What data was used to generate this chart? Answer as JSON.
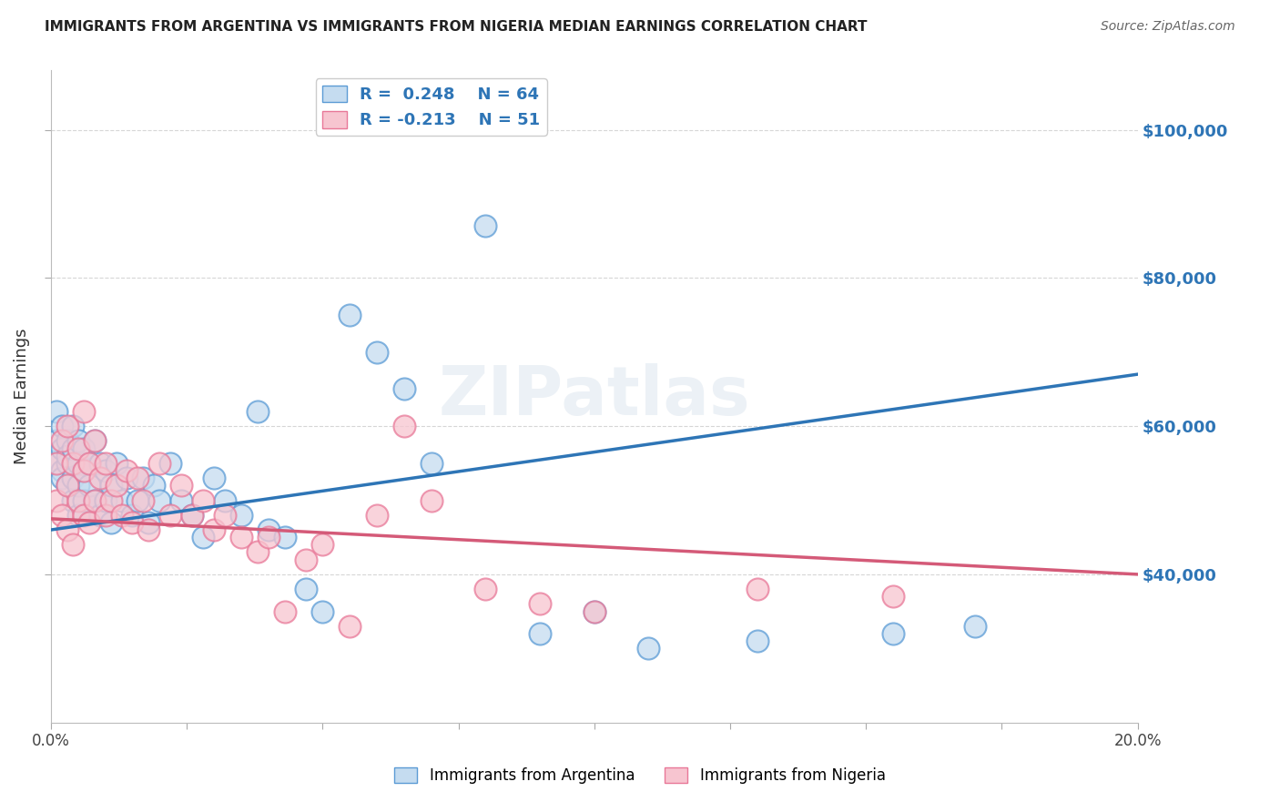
{
  "title": "IMMIGRANTS FROM ARGENTINA VS IMMIGRANTS FROM NIGERIA MEDIAN EARNINGS CORRELATION CHART",
  "source": "Source: ZipAtlas.com",
  "ylabel": "Median Earnings",
  "xmin": 0.0,
  "xmax": 0.2,
  "ymin": 20000,
  "ymax": 108000,
  "yticks": [
    40000,
    60000,
    80000,
    100000
  ],
  "ytick_labels": [
    "$40,000",
    "$60,000",
    "$80,000",
    "$100,000"
  ],
  "argentina_color": "#c5dcf0",
  "argentina_edge_color": "#5b9bd5",
  "argentina_line_color": "#2e75b6",
  "nigeria_color": "#f7c5d0",
  "nigeria_edge_color": "#e87898",
  "nigeria_line_color": "#d45a78",
  "label_color": "#2e75b6",
  "argentina_R": 0.248,
  "argentina_N": 64,
  "nigeria_R": -0.213,
  "nigeria_N": 51,
  "legend1_label": "Immigrants from Argentina",
  "legend2_label": "Immigrants from Nigeria",
  "watermark": "ZIPatlas",
  "argentina_x": [
    0.001,
    0.001,
    0.001,
    0.002,
    0.002,
    0.002,
    0.002,
    0.003,
    0.003,
    0.003,
    0.003,
    0.004,
    0.004,
    0.004,
    0.004,
    0.005,
    0.005,
    0.005,
    0.005,
    0.006,
    0.006,
    0.006,
    0.007,
    0.007,
    0.008,
    0.008,
    0.009,
    0.009,
    0.01,
    0.01,
    0.011,
    0.011,
    0.012,
    0.013,
    0.014,
    0.015,
    0.016,
    0.017,
    0.018,
    0.019,
    0.02,
    0.022,
    0.024,
    0.026,
    0.028,
    0.03,
    0.032,
    0.035,
    0.038,
    0.04,
    0.043,
    0.047,
    0.05,
    0.055,
    0.06,
    0.065,
    0.07,
    0.08,
    0.09,
    0.1,
    0.11,
    0.13,
    0.155,
    0.17
  ],
  "argentina_y": [
    55000,
    58000,
    62000,
    54000,
    57000,
    60000,
    53000,
    55000,
    58000,
    52000,
    56000,
    53000,
    57000,
    60000,
    50000,
    55000,
    52000,
    58000,
    48000,
    54000,
    57000,
    50000,
    55000,
    52000,
    58000,
    50000,
    55000,
    48000,
    54000,
    50000,
    52000,
    47000,
    55000,
    50000,
    53000,
    48000,
    50000,
    53000,
    47000,
    52000,
    50000,
    55000,
    50000,
    48000,
    45000,
    53000,
    50000,
    48000,
    62000,
    46000,
    45000,
    38000,
    35000,
    75000,
    70000,
    65000,
    55000,
    87000,
    32000,
    35000,
    30000,
    31000,
    32000,
    33000
  ],
  "nigeria_x": [
    0.001,
    0.001,
    0.002,
    0.002,
    0.003,
    0.003,
    0.003,
    0.004,
    0.004,
    0.005,
    0.005,
    0.006,
    0.006,
    0.006,
    0.007,
    0.007,
    0.008,
    0.008,
    0.009,
    0.01,
    0.01,
    0.011,
    0.012,
    0.013,
    0.014,
    0.015,
    0.016,
    0.017,
    0.018,
    0.02,
    0.022,
    0.024,
    0.026,
    0.028,
    0.03,
    0.032,
    0.035,
    0.038,
    0.04,
    0.043,
    0.047,
    0.05,
    0.055,
    0.06,
    0.065,
    0.07,
    0.08,
    0.09,
    0.1,
    0.13,
    0.155
  ],
  "nigeria_y": [
    50000,
    55000,
    48000,
    58000,
    52000,
    46000,
    60000,
    55000,
    44000,
    57000,
    50000,
    62000,
    54000,
    48000,
    55000,
    47000,
    58000,
    50000,
    53000,
    48000,
    55000,
    50000,
    52000,
    48000,
    54000,
    47000,
    53000,
    50000,
    46000,
    55000,
    48000,
    52000,
    48000,
    50000,
    46000,
    48000,
    45000,
    43000,
    45000,
    35000,
    42000,
    44000,
    33000,
    48000,
    60000,
    50000,
    38000,
    36000,
    35000,
    38000,
    37000
  ],
  "argentina_line_x0": 0.0,
  "argentina_line_y0": 46000,
  "argentina_line_x1": 0.2,
  "argentina_line_y1": 67000,
  "nigeria_line_x0": 0.0,
  "nigeria_line_y0": 47500,
  "nigeria_line_x1": 0.2,
  "nigeria_line_y1": 40000
}
